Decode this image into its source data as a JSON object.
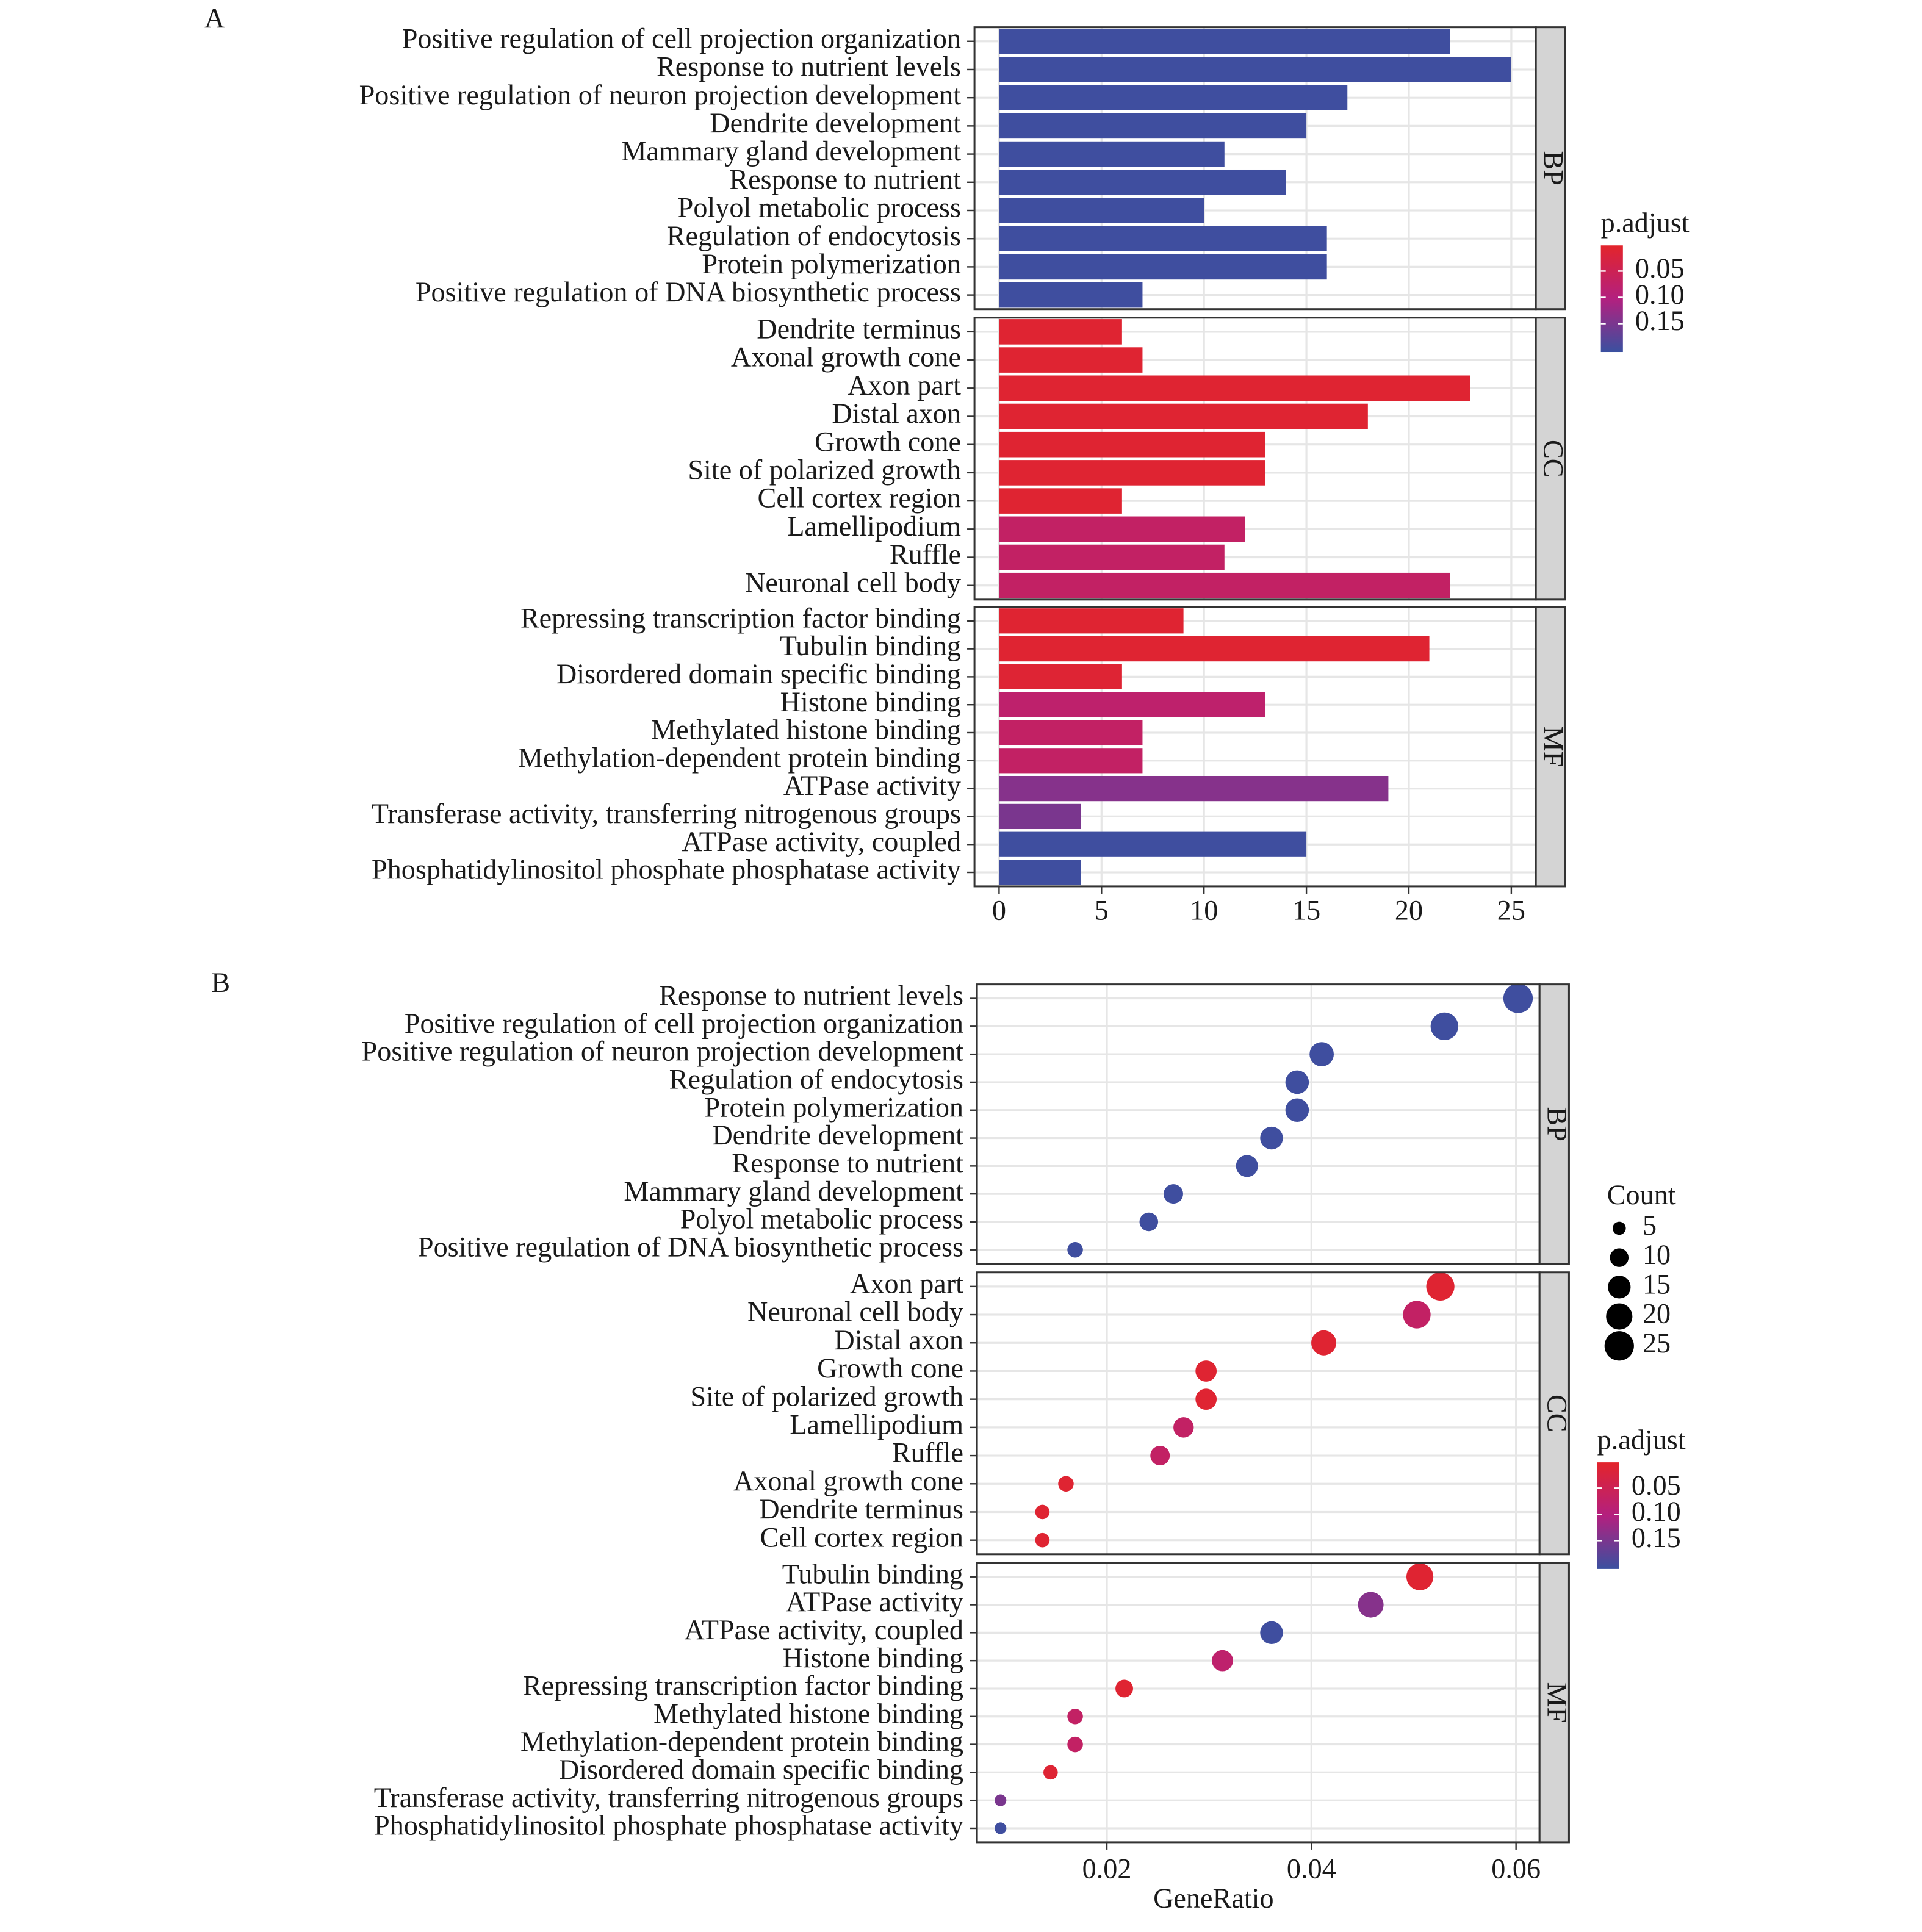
{
  "chart_data": [
    {
      "type": "bar",
      "panel": "A",
      "xlim": [
        -1.2,
        26.2
      ],
      "xticks": [
        0,
        5,
        10,
        15,
        20,
        25
      ],
      "grid": true,
      "color_title": "p.adjust",
      "color_lim": [
        0.001,
        0.204
      ],
      "colors": [
        "#e3242b",
        "#b3207f",
        "#3a50a0"
      ],
      "color_ticks": [
        0.05,
        {
          "value": 0.1,
          "label": "0.10"
        },
        0.15
      ],
      "facets": [
        {
          "strip": "BP",
          "categories": [
            "Positive regulation of cell projection organization",
            "Response to nutrient levels",
            "Positive regulation of neuron projection development",
            "Dendrite development",
            "Mammary gland development",
            "Response to nutrient",
            "Polyol metabolic process",
            "Regulation of endocytosis",
            "Protein polymerization",
            "Positive regulation of DNA biosynthetic process"
          ],
          "values": [
            22,
            25,
            17,
            15,
            11,
            14,
            10,
            16,
            16,
            7
          ],
          "p_adjust": [
            0.2,
            0.2,
            0.2,
            0.2,
            0.2,
            0.2,
            0.2,
            0.2,
            0.2,
            0.2
          ]
        },
        {
          "strip": "CC",
          "categories": [
            "Dendrite terminus",
            "Axonal growth cone",
            "Axon part",
            "Distal axon",
            "Growth cone",
            "Site of polarized growth",
            "Cell cortex region",
            "Lamellipodium",
            "Ruffle",
            "Neuronal cell body"
          ],
          "values": [
            6,
            7,
            23,
            18,
            13,
            13,
            6,
            12,
            11,
            22
          ],
          "p_adjust": [
            0.01,
            0.01,
            0.01,
            0.01,
            0.01,
            0.01,
            0.01,
            0.07,
            0.07,
            0.07
          ]
        },
        {
          "strip": "MF",
          "categories": [
            "Repressing transcription factor binding",
            "Tubulin binding",
            "Disordered domain specific binding",
            "Histone binding",
            "Methylated histone binding",
            "Methylation-dependent protein binding",
            "ATPase activity",
            "Transferase activity, transferring nitrogenous groups",
            "ATPase activity, coupled",
            "Phosphatidylinositol phosphate phosphatase activity"
          ],
          "values": [
            9,
            21,
            6,
            13,
            7,
            7,
            19,
            4,
            15,
            4
          ],
          "p_adjust": [
            0.01,
            0.01,
            0.012,
            0.08,
            0.07,
            0.07,
            0.14,
            0.15,
            0.2,
            0.2
          ]
        }
      ]
    },
    {
      "type": "dot",
      "panel": "B",
      "x_label": "GeneRatio",
      "xlim": [
        0.0073,
        0.0623
      ],
      "xticks": [
        0.02,
        0.04,
        0.06
      ],
      "grid": true,
      "color_title": "p.adjust",
      "color_lim": [
        0.001,
        0.204
      ],
      "colors": [
        "#e3242b",
        "#b3207f",
        "#3a50a0"
      ],
      "color_ticks": [
        0.05,
        {
          "value": 0.1,
          "label": "0.10"
        },
        0.15
      ],
      "size_title": "Count",
      "size_ticks": [
        5,
        10,
        15,
        20,
        25
      ],
      "facets": [
        {
          "strip": "BP",
          "categories": [
            "Response to nutrient levels",
            "Positive regulation of cell projection organization",
            "Positive regulation of neuron projection development",
            "Regulation of endocytosis",
            "Protein polymerization",
            "Dendrite development",
            "Response to nutrient",
            "Mammary gland development",
            "Polyol metabolic process",
            "Positive regulation of DNA biosynthetic process"
          ],
          "values": [
            0.0602,
            0.053,
            0.041,
            0.0386,
            0.0386,
            0.0361,
            0.0337,
            0.0265,
            0.0241,
            0.0169
          ],
          "counts": [
            25,
            22,
            17,
            16,
            16,
            15,
            14,
            11,
            10,
            7
          ],
          "p_adjust": [
            0.2,
            0.2,
            0.2,
            0.2,
            0.2,
            0.2,
            0.2,
            0.2,
            0.2,
            0.2
          ]
        },
        {
          "strip": "CC",
          "categories": [
            "Axon part",
            "Neuronal cell body",
            "Distal axon",
            "Growth cone",
            "Site of polarized growth",
            "Lamellipodium",
            "Ruffle",
            "Axonal growth cone",
            "Dendrite terminus",
            "Cell cortex region"
          ],
          "values": [
            0.0526,
            0.0503,
            0.0412,
            0.0297,
            0.0297,
            0.0275,
            0.0252,
            0.016,
            0.0137,
            0.0137
          ],
          "counts": [
            23,
            22,
            18,
            13,
            13,
            12,
            11,
            7,
            6,
            6
          ],
          "p_adjust": [
            0.01,
            0.07,
            0.01,
            0.01,
            0.01,
            0.07,
            0.07,
            0.01,
            0.01,
            0.01
          ]
        },
        {
          "strip": "MF",
          "categories": [
            "Tubulin binding",
            "ATPase activity",
            "ATPase activity, coupled",
            "Histone binding",
            "Repressing transcription factor binding",
            "Methylated histone binding",
            "Methylation-dependent protein binding",
            "Disordered domain specific binding",
            "Transferase activity, transferring nitrogenous groups",
            "Phosphatidylinositol phosphate phosphatase activity"
          ],
          "values": [
            0.0506,
            0.0458,
            0.0361,
            0.0313,
            0.0217,
            0.0169,
            0.0169,
            0.0145,
            0.0096,
            0.0096
          ],
          "counts": [
            21,
            19,
            15,
            13,
            9,
            7,
            7,
            6,
            4,
            4
          ],
          "p_adjust": [
            0.01,
            0.14,
            0.2,
            0.08,
            0.01,
            0.07,
            0.07,
            0.012,
            0.15,
            0.2
          ]
        }
      ]
    }
  ]
}
